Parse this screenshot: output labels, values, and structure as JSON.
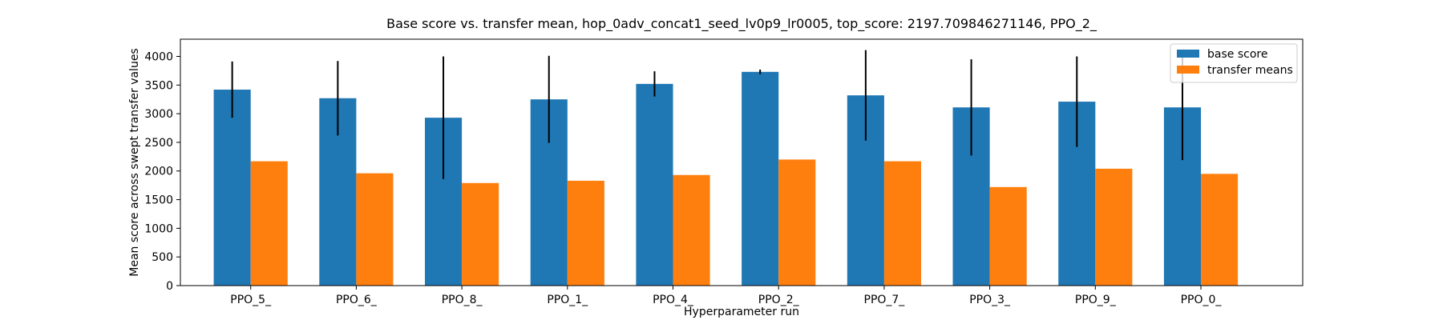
{
  "chart_data": {
    "type": "bar",
    "title": "Base score vs. transfer mean, hop_0adv_concat1_seed_lv0p9_lr0005, top_score: 2197.709846271146, PPO_2_",
    "xlabel": "Hyperparameter run",
    "ylabel": "Mean score across swept transfer values",
    "ylim": [
      0,
      4300
    ],
    "yticks": [
      "0",
      "500",
      "1000",
      "1500",
      "2000",
      "2500",
      "3000",
      "3500",
      "4000"
    ],
    "grid": false,
    "legend_position": "top-right",
    "categories": [
      "PPO_5_",
      "PPO_6_",
      "PPO_8_",
      "PPO_1_",
      "PPO_4_",
      "PPO_2_",
      "PPO_7_",
      "PPO_3_",
      "PPO_9_",
      "PPO_0_"
    ],
    "series": [
      {
        "name": "base score",
        "color": "#1f77b4",
        "values": [
          3420,
          3270,
          2930,
          3250,
          3520,
          3730,
          3320,
          3110,
          3210,
          3110
        ],
        "error": [
          490,
          650,
          1070,
          760,
          220,
          40,
          790,
          840,
          790,
          920
        ]
      },
      {
        "name": "transfer means",
        "color": "#ff7f0e",
        "values": [
          2170,
          1960,
          1790,
          1830,
          1930,
          2200,
          2170,
          1720,
          2040,
          1950
        ]
      }
    ]
  }
}
